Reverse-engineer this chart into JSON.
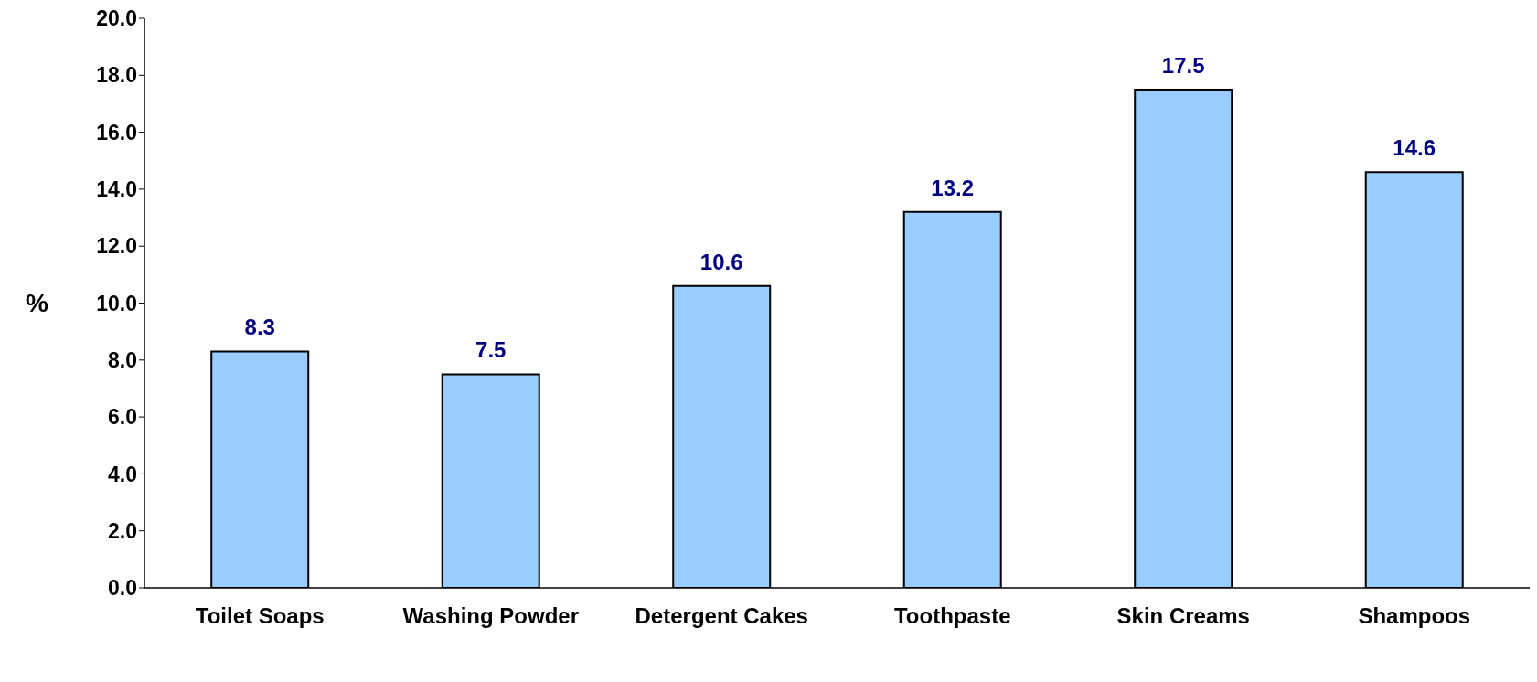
{
  "chart_data": {
    "type": "bar",
    "ylabel": "%",
    "categories": [
      "Toilet Soaps",
      "Washing Powder",
      "Detergent Cakes",
      "Toothpaste",
      "Skin Creams",
      "Shampoos"
    ],
    "values": [
      8.3,
      7.5,
      10.6,
      13.2,
      17.5,
      14.6
    ],
    "value_labels": [
      "8.3",
      "7.5",
      "10.6",
      "13.2",
      "17.5",
      "14.6"
    ],
    "color": "#99ccff",
    "ylim": [
      0,
      20
    ],
    "yticks": [
      {
        "value": 0,
        "label": "0.0"
      },
      {
        "value": 2,
        "label": "2.0"
      },
      {
        "value": 4,
        "label": "4.0"
      },
      {
        "value": 6,
        "label": "6.0"
      },
      {
        "value": 8,
        "label": "8.0"
      },
      {
        "value": 10,
        "label": "10.0"
      },
      {
        "value": 12,
        "label": "12.0"
      },
      {
        "value": 14,
        "label": "14.0"
      },
      {
        "value": 16,
        "label": "16.0"
      },
      {
        "value": 18,
        "label": "18.0"
      },
      {
        "value": 20,
        "label": "20.0"
      }
    ],
    "grid": false,
    "legend": false
  }
}
